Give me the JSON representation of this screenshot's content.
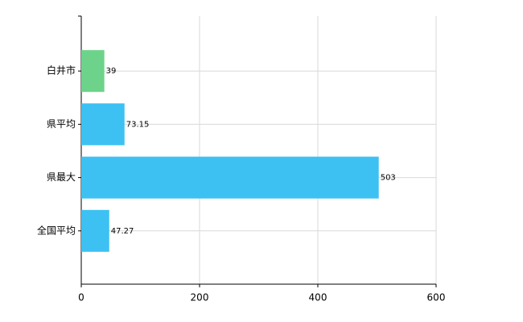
{
  "chart_data": {
    "type": "bar",
    "orientation": "horizontal",
    "categories": [
      "白井市",
      "県平均",
      "県最大",
      "全国平均"
    ],
    "values": [
      39,
      73.15,
      503,
      47.27
    ],
    "colors": [
      "#6dd38a",
      "#3dc1f2",
      "#3dc1f2",
      "#3dc1f2"
    ],
    "xlim": [
      0,
      600
    ],
    "xticks": [
      0,
      200,
      400,
      600
    ],
    "grid": true
  }
}
